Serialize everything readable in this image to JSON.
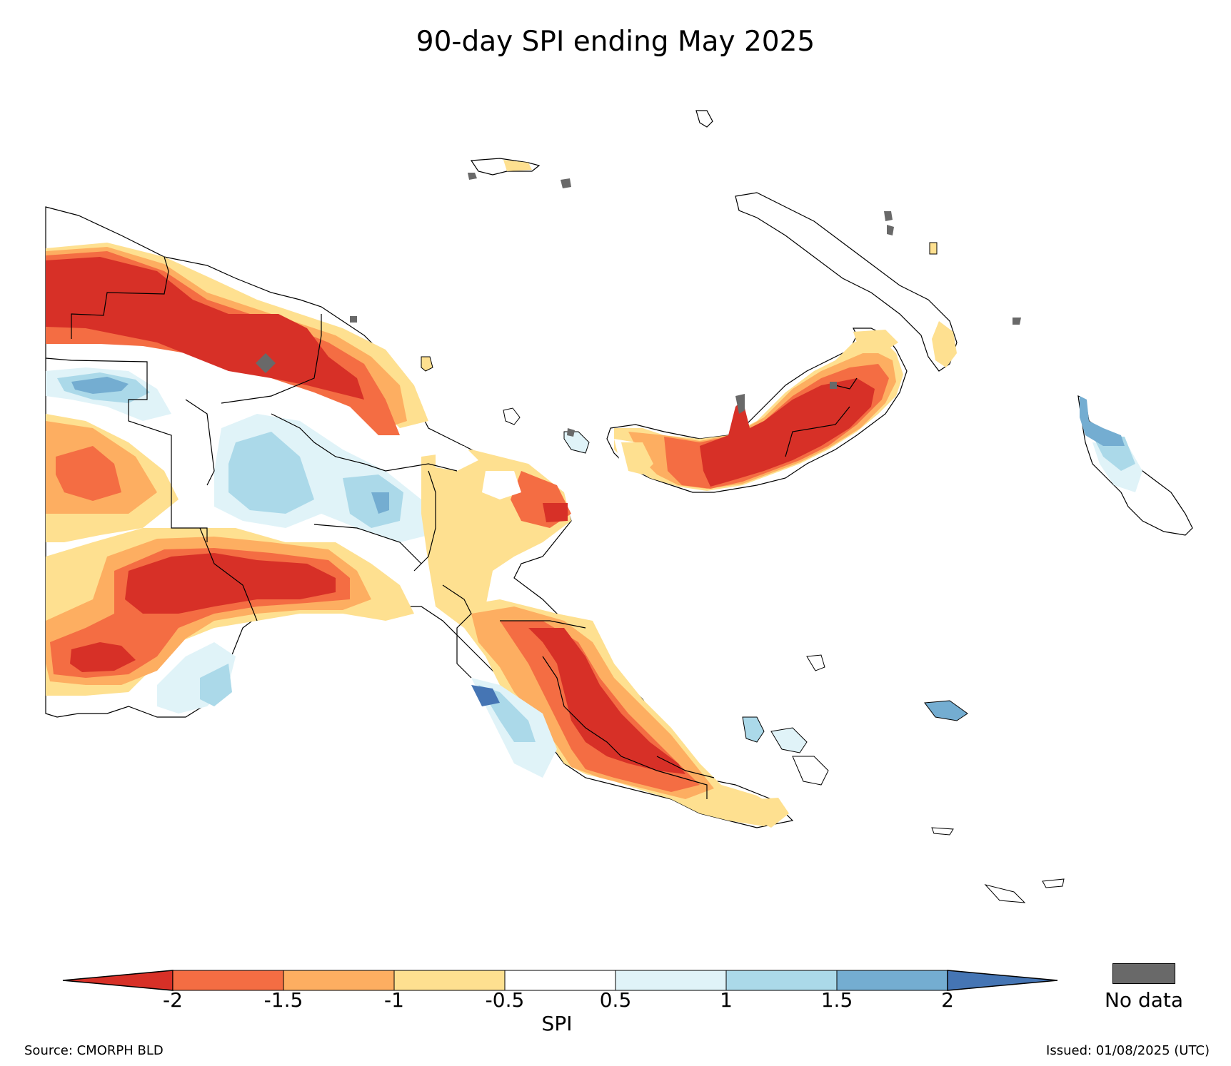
{
  "title": "90-day SPI ending May 2025",
  "colorbar": {
    "label": "SPI",
    "ticks": [
      "-2",
      "-1.5",
      "-1",
      "-0.5",
      "0.5",
      "1",
      "1.5",
      "2"
    ],
    "bins": [
      {
        "range": "< -2",
        "color": "#d73027"
      },
      {
        "range": "-2 to -1.5",
        "color": "#f46d43"
      },
      {
        "range": "-1.5 to -1",
        "color": "#fdae61"
      },
      {
        "range": "-1 to -0.5",
        "color": "#fee090"
      },
      {
        "range": "-0.5 to 0.5",
        "color": "#ffffff"
      },
      {
        "range": "0.5 to 1",
        "color": "#e0f3f8"
      },
      {
        "range": "1 to 1.5",
        "color": "#abd9e9"
      },
      {
        "range": "1.5 to 2",
        "color": "#74add1"
      },
      {
        "range": "> 2",
        "color": "#4575b4"
      }
    ]
  },
  "no_data": {
    "label": "No data",
    "color": "#696969"
  },
  "footer": {
    "source": "Source: CMORPH BLD",
    "issued": "Issued: 01/08/2025 (UTC)"
  }
}
